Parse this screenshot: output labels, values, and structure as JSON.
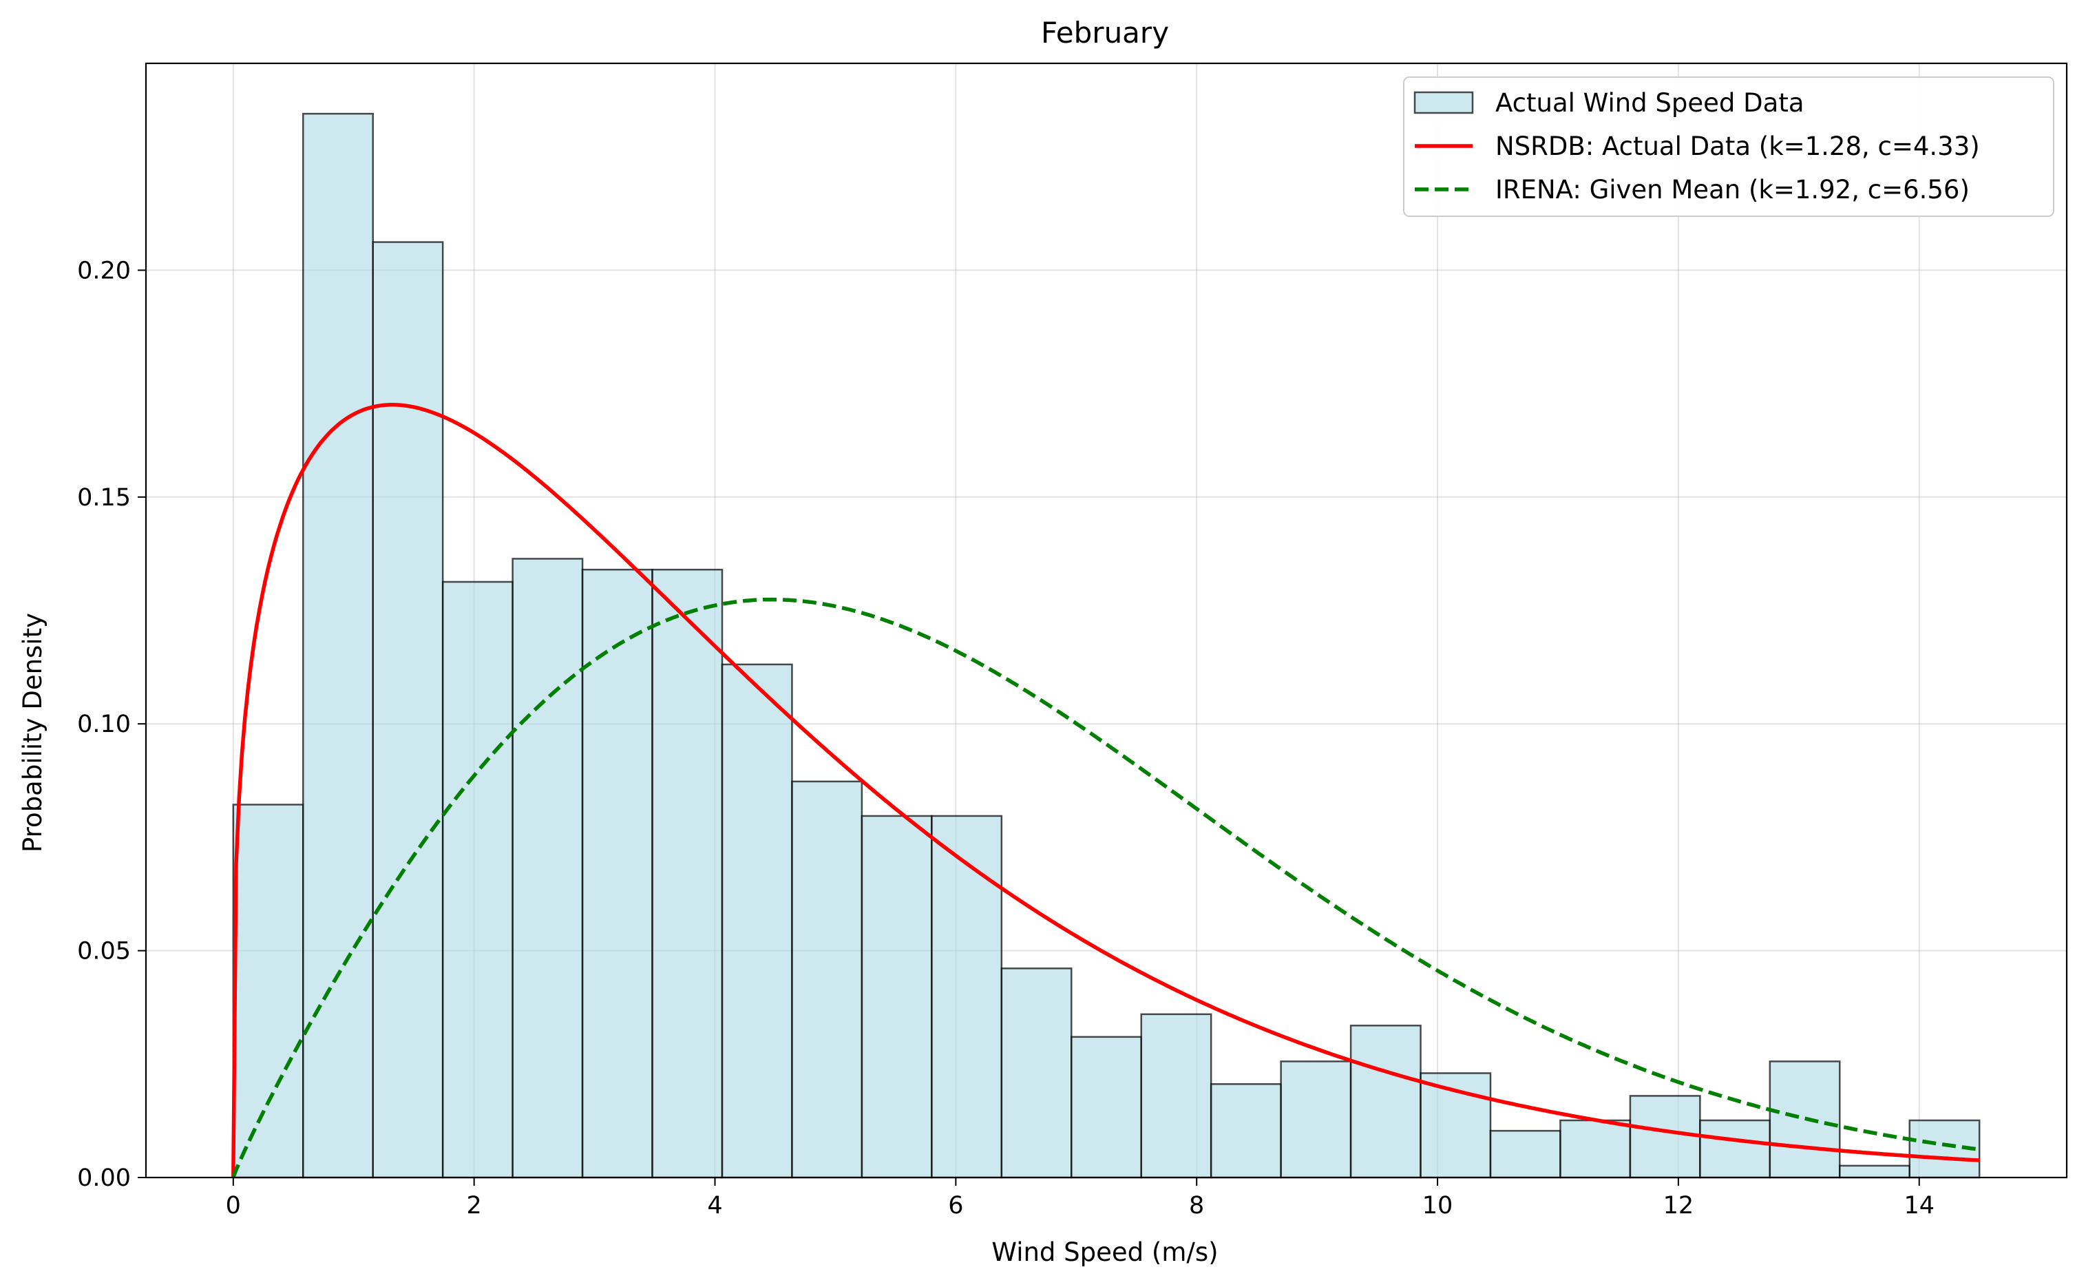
{
  "chart_data": {
    "type": "bar",
    "title": "February",
    "xlabel": "Wind Speed (m/s)",
    "ylabel": "Probability Density",
    "xlim": [
      -0.725,
      15.225
    ],
    "ylim": [
      0,
      0.2456
    ],
    "xticks": [
      0,
      2,
      4,
      6,
      8,
      10,
      12,
      14
    ],
    "xtick_labels": [
      "0",
      "2",
      "4",
      "6",
      "8",
      "10",
      "12",
      "14"
    ],
    "yticks": [
      0,
      0.05,
      0.1,
      0.15,
      0.2
    ],
    "ytick_labels": [
      "0.00",
      "0.05",
      "0.10",
      "0.15",
      "0.20"
    ],
    "grid": true,
    "legend_position": "top-right",
    "histogram": {
      "name": "Actual Wind Speed Data",
      "fill": "#add8e6",
      "bin_edges": [
        0,
        0.58,
        1.16,
        1.74,
        2.32,
        2.9,
        3.48,
        4.06,
        4.64,
        5.22,
        5.8,
        6.38,
        6.96,
        7.54,
        8.12,
        8.7,
        9.28,
        9.86,
        10.44,
        11.02,
        11.6,
        12.18,
        12.76,
        13.34,
        13.92,
        14.5
      ],
      "density": [
        0.0822,
        0.2345,
        0.2062,
        0.1313,
        0.1364,
        0.134,
        0.134,
        0.1131,
        0.0873,
        0.0797,
        0.0797,
        0.0461,
        0.031,
        0.036,
        0.0206,
        0.0256,
        0.0335,
        0.023,
        0.0103,
        0.0126,
        0.018,
        0.0126,
        0.0256,
        0.0026,
        0.0126
      ]
    },
    "series": [
      {
        "name": "NSRDB: Actual Data (k=1.28, c=4.33)",
        "type": "weibull_pdf",
        "k": 1.28,
        "c": 4.33,
        "color": "#ff0000",
        "style": "solid"
      },
      {
        "name": "IRENA: Given Mean (k=1.92, c=6.56)",
        "type": "weibull_pdf",
        "k": 1.92,
        "c": 6.56,
        "color": "#008000",
        "style": "dashed"
      }
    ]
  }
}
